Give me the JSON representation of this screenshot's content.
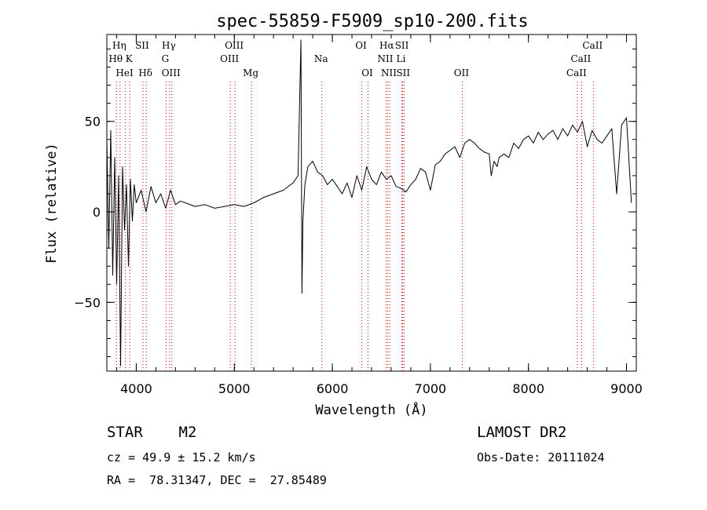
{
  "chart_data": {
    "type": "line",
    "title": "spec-55859-F5909_sp10-200.fits",
    "xlabel": "Wavelength (Å)",
    "ylabel": "Flux (relative)",
    "xlim": [
      3700,
      9100
    ],
    "ylim": [
      -88,
      98
    ],
    "xticks": [
      4000,
      5000,
      6000,
      7000,
      8000,
      9000
    ],
    "yticks": [
      -50,
      0,
      50
    ],
    "yticklabels": [
      "−50",
      "0",
      "50"
    ],
    "grid": false,
    "line_color": "#000000",
    "marker_color": "#cc0000",
    "spectrum": {
      "x": [
        3700,
        3720,
        3740,
        3760,
        3780,
        3800,
        3820,
        3840,
        3860,
        3880,
        3900,
        3920,
        3940,
        3960,
        3980,
        4000,
        4050,
        4100,
        4150,
        4200,
        4250,
        4300,
        4350,
        4400,
        4450,
        4500,
        4600,
        4700,
        4800,
        4900,
        5000,
        5100,
        5200,
        5300,
        5400,
        5500,
        5600,
        5650,
        5680,
        5690,
        5700,
        5720,
        5750,
        5800,
        5850,
        5900,
        5950,
        6000,
        6050,
        6100,
        6150,
        6200,
        6250,
        6300,
        6350,
        6400,
        6450,
        6500,
        6550,
        6600,
        6650,
        6700,
        6750,
        6800,
        6850,
        6900,
        6950,
        7000,
        7050,
        7100,
        7150,
        7200,
        7250,
        7300,
        7350,
        7400,
        7450,
        7500,
        7550,
        7600,
        7620,
        7650,
        7680,
        7700,
        7750,
        7800,
        7850,
        7900,
        7950,
        8000,
        8050,
        8100,
        8150,
        8200,
        8250,
        8300,
        8350,
        8400,
        8450,
        8500,
        8550,
        8600,
        8650,
        8700,
        8750,
        8800,
        8850,
        8900,
        8950,
        9000,
        9050
      ],
      "y": [
        40,
        -20,
        45,
        -35,
        30,
        -40,
        20,
        -85,
        25,
        -10,
        15,
        -30,
        18,
        -5,
        15,
        5,
        12,
        0,
        14,
        5,
        10,
        2,
        12,
        4,
        6,
        5,
        3,
        4,
        2,
        3,
        4,
        3,
        5,
        8,
        10,
        12,
        16,
        20,
        95,
        -45,
        -5,
        15,
        25,
        28,
        22,
        20,
        15,
        18,
        14,
        10,
        16,
        8,
        20,
        12,
        25,
        18,
        15,
        22,
        18,
        20,
        14,
        13,
        11,
        15,
        18,
        24,
        22,
        12,
        26,
        28,
        32,
        34,
        36,
        30,
        38,
        40,
        38,
        35,
        33,
        32,
        20,
        28,
        25,
        30,
        32,
        30,
        38,
        35,
        40,
        42,
        38,
        44,
        40,
        43,
        45,
        40,
        46,
        42,
        48,
        44,
        50,
        36,
        45,
        40,
        38,
        42,
        46,
        10,
        48,
        52,
        5
      ]
    },
    "lines": [
      {
        "label": "Hη",
        "x": 3835,
        "row": 1
      },
      {
        "label": "Hθ",
        "x": 3798,
        "row": 2
      },
      {
        "label": "K",
        "x": 3934,
        "row": 2
      },
      {
        "label": "HeI",
        "x": 3889,
        "row": 3
      },
      {
        "label": "SII",
        "x": 4068,
        "row": 1
      },
      {
        "label": "Hδ",
        "x": 4102,
        "row": 3
      },
      {
        "label": "Hγ",
        "x": 4340,
        "row": 1
      },
      {
        "label": "G",
        "x": 4304,
        "row": 2
      },
      {
        "label": "OIII",
        "x": 4363,
        "row": 3
      },
      {
        "label": "OIII",
        "x": 5007,
        "row": 1
      },
      {
        "label": "OIII",
        "x": 4959,
        "row": 2
      },
      {
        "label": "Mg",
        "x": 5175,
        "row": 3
      },
      {
        "label": "Na",
        "x": 5893,
        "row": 2
      },
      {
        "label": "OI",
        "x": 6300,
        "row": 1
      },
      {
        "label": "OI",
        "x": 6364,
        "row": 3
      },
      {
        "label": "Hα",
        "x": 6563,
        "row": 1
      },
      {
        "label": "NII",
        "x": 6548,
        "row": 2
      },
      {
        "label": "NII",
        "x": 6584,
        "row": 3
      },
      {
        "label": "SII",
        "x": 6717,
        "row": 1
      },
      {
        "label": "Li",
        "x": 6708,
        "row": 2
      },
      {
        "label": "SII",
        "x": 6731,
        "row": 3
      },
      {
        "label": "OII",
        "x": 7325,
        "row": 3
      },
      {
        "label": "CaII",
        "x": 8662,
        "row": 1
      },
      {
        "label": "CaII",
        "x": 8542,
        "row": 2
      },
      {
        "label": "CaII",
        "x": 8498,
        "row": 3
      }
    ]
  },
  "info": {
    "class": "STAR    M2",
    "survey": "LAMOST DR2",
    "cz": "cz = 49.9 ± 15.2 km/s",
    "obs_date": "Obs-Date: 20111024",
    "coords": "RA =  78.31347, DEC =  27.85489"
  }
}
